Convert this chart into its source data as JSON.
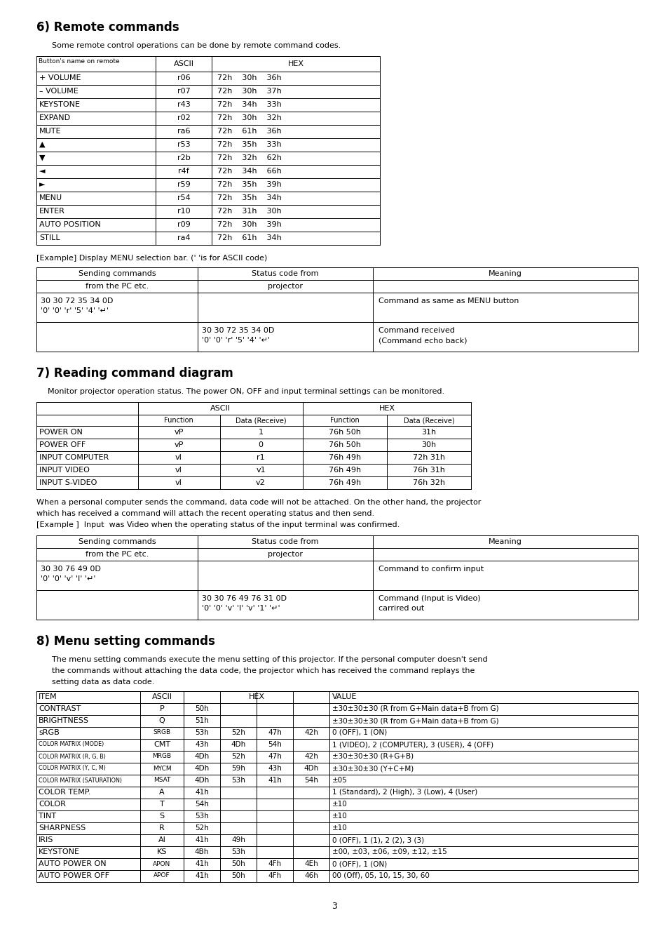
{
  "background": "#ffffff",
  "section6_title": "6) Remote commands",
  "section6_intro": "Some remote control operations can be done by remote command codes.",
  "remote_table_headers": [
    "Button's name on remote",
    "ASCII",
    "HEX"
  ],
  "remote_table_rows": [
    [
      "+ VOLUME",
      "r06",
      "72h    30h    36h"
    ],
    [
      "– VOLUME",
      "r07",
      "72h    30h    37h"
    ],
    [
      "KEYSTONE",
      "r43",
      "72h    34h    33h"
    ],
    [
      "EXPAND",
      "r02",
      "72h    30h    32h"
    ],
    [
      "MUTE",
      "ra6",
      "72h    61h    36h"
    ],
    [
      "▲",
      "r53",
      "72h    35h    33h"
    ],
    [
      "▼",
      "r2b",
      "72h    32h    62h"
    ],
    [
      "◄",
      "r4f",
      "72h    34h    66h"
    ],
    [
      "►",
      "r59",
      "72h    35h    39h"
    ],
    [
      "MENU",
      "r54",
      "72h    35h    34h"
    ],
    [
      "ENTER",
      "r10",
      "72h    31h    30h"
    ],
    [
      "AUTO POSITION",
      "r09",
      "72h    30h    39h"
    ],
    [
      "STILL",
      "ra4",
      "72h    61h    34h"
    ]
  ],
  "example1_label": "[Example] Display MENU selection bar. (' 'is for ASCII code)",
  "section7_title": "7) Reading command diagram",
  "section7_intro": "Monitor projector operation status. The power ON, OFF and input terminal settings can be monitored.",
  "reading_table_rows": [
    [
      "POWER ON",
      "vP",
      "1",
      "76h 50h",
      "31h"
    ],
    [
      "POWER OFF",
      "vP",
      "0",
      "76h 50h",
      "30h"
    ],
    [
      "INPUT COMPUTER",
      "vI",
      "r1",
      "76h 49h",
      "72h 31h"
    ],
    [
      "INPUT VIDEO",
      "vI",
      "v1",
      "76h 49h",
      "76h 31h"
    ],
    [
      "INPUT S-VIDEO",
      "vI",
      "v2",
      "76h 49h",
      "76h 32h"
    ]
  ],
  "section7_para1": "When a personal computer sends the command, data code will not be attached. On the other hand, the projector",
  "section7_para2": "which has received a command will attach the recent operating status and then send.",
  "section7_para3": "[Example ]  Input  was Video when the operating status of the input terminal was confirmed.",
  "section8_title": "8) Menu setting commands",
  "section8_intro1": "The menu setting commands execute the menu setting of this projector. If the personal computer doesn't send",
  "section8_intro2": "the commands without attaching the data code, the projector which has received the command replays the",
  "section8_intro3": "setting data as data code.",
  "menu_table_rows": [
    [
      "CONTRAST",
      "P",
      "50h",
      "",
      "",
      "",
      "±30±30±30 (R from G+Main data+B from G)"
    ],
    [
      "BRIGHTNESS",
      "Q",
      "51h",
      "",
      "",
      "",
      "±30±30±30 (R from G+Main data+B from G)"
    ],
    [
      "sRGB",
      "SRGB",
      "53h",
      "52h",
      "47h",
      "42h",
      "0 (OFF), 1 (ON)"
    ],
    [
      "COLOR MATRIX (MODE)",
      "CMT",
      "43h",
      "4Dh",
      "54h",
      "",
      "1 (VIDEO), 2 (COMPUTER), 3 (USER), 4 (OFF)"
    ],
    [
      "COLOR MATRIX (R, G, B)",
      "MRGB",
      "4Dh",
      "52h",
      "47h",
      "42h",
      "±30±30±30 (R+G+B)"
    ],
    [
      "COLOR MATRIX (Y, C, M)",
      "MYCM",
      "4Dh",
      "59h",
      "43h",
      "4Dh",
      "±30±30±30 (Y+C+M)"
    ],
    [
      "COLOR MATRIX (SATURATION)",
      "MSAT",
      "4Dh",
      "53h",
      "41h",
      "54h",
      "±05"
    ],
    [
      "COLOR TEMP.",
      "A",
      "41h",
      "",
      "",
      "",
      "1 (Standard), 2 (High), 3 (Low), 4 (User)"
    ],
    [
      "COLOR",
      "T",
      "54h",
      "",
      "",
      "",
      "±10"
    ],
    [
      "TINT",
      "S",
      "53h",
      "",
      "",
      "",
      "±10"
    ],
    [
      "SHARPNESS",
      "R",
      "52h",
      "",
      "",
      "",
      "±10"
    ],
    [
      "IRIS",
      "AI",
      "41h",
      "49h",
      "",
      "",
      "0 (OFF), 1 (1), 2 (2), 3 (3)"
    ],
    [
      "KEYSTONE",
      "KS",
      "4Bh",
      "53h",
      "",
      "",
      "±00, ±03, ±06, ±09, ±12, ±15"
    ],
    [
      "AUTO POWER ON",
      "APON",
      "41h",
      "50h",
      "4Fh",
      "4Eh",
      "0 (OFF), 1 (ON)"
    ],
    [
      "AUTO POWER OFF",
      "APOF",
      "41h",
      "50h",
      "4Fh",
      "46h",
      "00 (Off), 05, 10, 15, 30, 60"
    ]
  ],
  "page_number": "3"
}
